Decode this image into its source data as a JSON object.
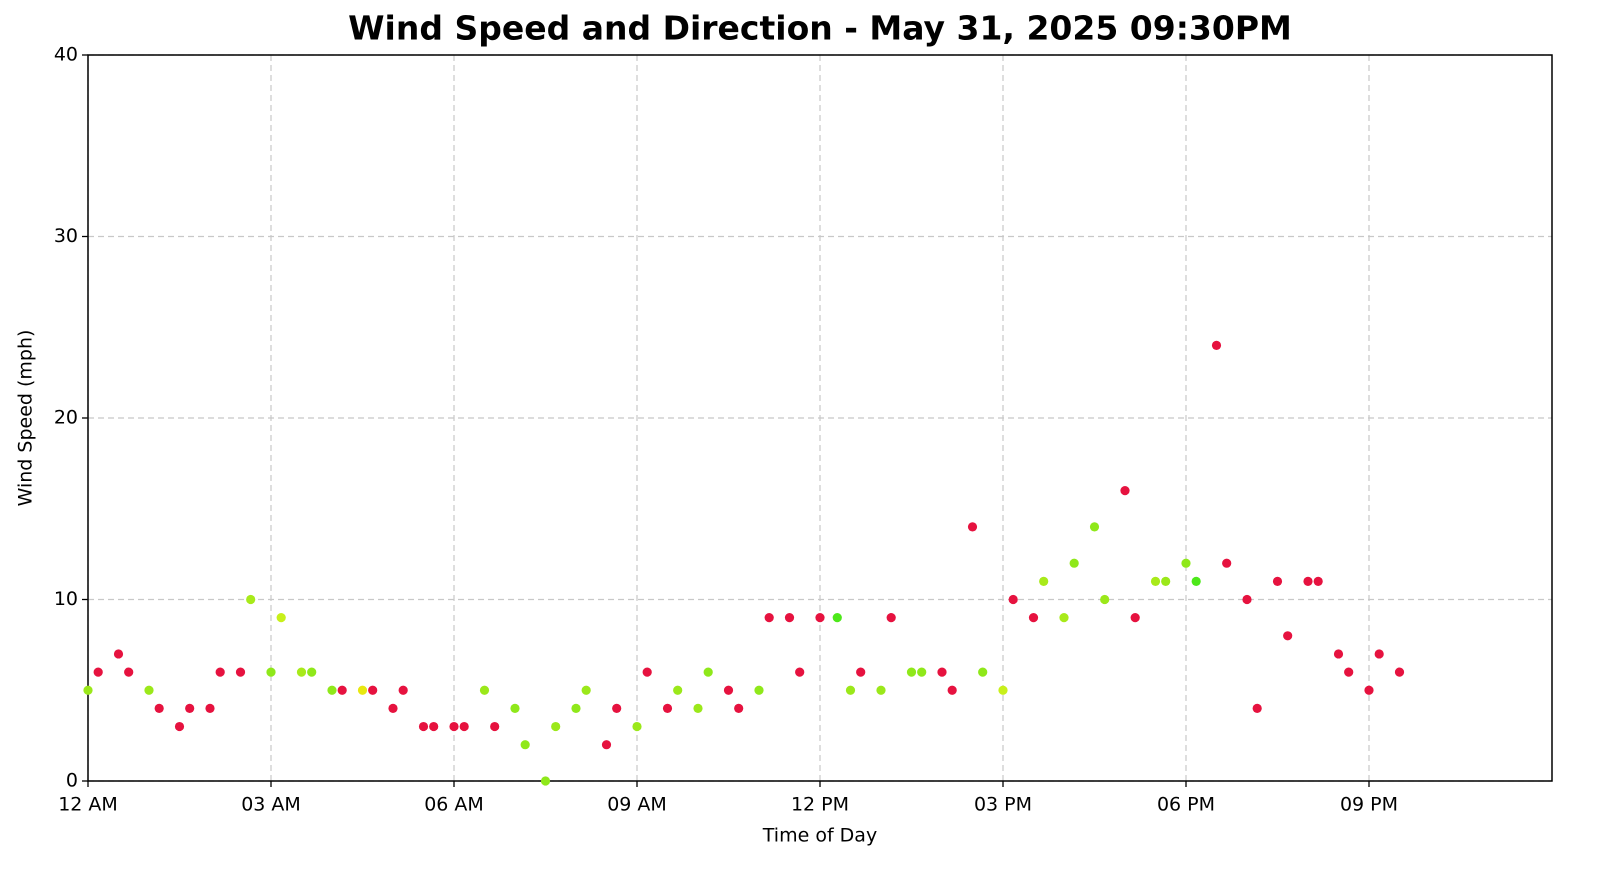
{
  "chart_data": {
    "type": "scatter",
    "title": "Wind Speed and Direction - May 31, 2025 09:30PM",
    "xlabel": "Time of Day",
    "ylabel": "Wind Speed (mph)",
    "xlim": [
      0,
      24
    ],
    "ylim": [
      0,
      40
    ],
    "grid": true,
    "xticks": [
      {
        "value": 0,
        "label": "12 AM"
      },
      {
        "value": 3,
        "label": "03 AM"
      },
      {
        "value": 6,
        "label": "06 AM"
      },
      {
        "value": 9,
        "label": "09 AM"
      },
      {
        "value": 12,
        "label": "12 PM"
      },
      {
        "value": 15,
        "label": "03 PM"
      },
      {
        "value": 18,
        "label": "06 PM"
      },
      {
        "value": 21,
        "label": "09 PM"
      }
    ],
    "yticks": [
      0,
      10,
      20,
      30,
      40
    ],
    "x": [
      0,
      0.167,
      0.5,
      0.667,
      1,
      1.167,
      1.5,
      1.667,
      2,
      2.167,
      2.5,
      2.667,
      3,
      3.167,
      3.5,
      3.667,
      4,
      4.167,
      4.5,
      4.667,
      5,
      5.167,
      5.5,
      5.667,
      6,
      6.167,
      6.5,
      6.667,
      7,
      7.167,
      7.5,
      7.667,
      8,
      8.167,
      8.5,
      8.667,
      9,
      9.167,
      9.5,
      9.667,
      10,
      10.167,
      10.5,
      10.667,
      11,
      11.167,
      11.5,
      11.667,
      12,
      12.283,
      12.5,
      12.667,
      13,
      13.167,
      13.5,
      13.667,
      14,
      14.167,
      14.5,
      14.667,
      15,
      15.167,
      15.5,
      15.667,
      16,
      16.167,
      16.5,
      16.667,
      17,
      17.167,
      17.5,
      17.667,
      18,
      18.167,
      18.5,
      18.667,
      19,
      19.167,
      19.5,
      19.667,
      20,
      20.167,
      20.5,
      20.667,
      21,
      21.167,
      21.5
    ],
    "values": [
      5,
      6,
      7,
      6,
      5,
      4,
      3,
      4,
      4,
      6,
      6,
      10,
      6,
      9,
      6,
      6,
      5,
      5,
      5,
      5,
      4,
      5,
      3,
      3,
      3,
      3,
      5,
      3,
      4,
      2,
      0,
      3,
      4,
      5,
      2,
      4,
      3,
      6,
      4,
      5,
      4,
      6,
      5,
      4,
      5,
      9,
      9,
      6,
      9,
      9,
      5,
      6,
      5,
      9,
      6,
      6,
      6,
      5,
      14,
      6,
      5,
      10,
      9,
      11,
      9,
      12,
      14,
      10,
      16,
      9,
      11,
      11,
      12,
      11,
      24,
      12,
      10,
      4,
      11,
      8,
      11,
      11,
      7,
      6,
      5,
      7,
      6
    ],
    "colors": [
      "#9be81a",
      "#e6123f",
      "#e6123f",
      "#e6123f",
      "#9be81a",
      "#e6123f",
      "#e6123f",
      "#e6123f",
      "#e6123f",
      "#e6123f",
      "#e6123f",
      "#a8ea1a",
      "#8fe81a",
      "#c8f01a",
      "#a8ea1a",
      "#8fe81a",
      "#8fe81a",
      "#e6123f",
      "#e8e810",
      "#e6123f",
      "#e6123f",
      "#e6123f",
      "#e6123f",
      "#e6123f",
      "#e6123f",
      "#e6123f",
      "#9be81a",
      "#e6123f",
      "#8fe81a",
      "#8fe81a",
      "#8fe81a",
      "#9be81a",
      "#8fe81a",
      "#9be81a",
      "#e6123f",
      "#e6123f",
      "#9be81a",
      "#e6123f",
      "#e6123f",
      "#9be81a",
      "#9be81a",
      "#8fe81a",
      "#e6123f",
      "#e6123f",
      "#8fe81a",
      "#e6123f",
      "#e6123f",
      "#e6123f",
      "#e6123f",
      "#4de81a",
      "#9be81a",
      "#e6123f",
      "#9be81a",
      "#e6123f",
      "#8fe81a",
      "#8fe81a",
      "#e6123f",
      "#e6123f",
      "#e6123f",
      "#8fe81a",
      "#c8f01a",
      "#e6123f",
      "#e6123f",
      "#a8ea1a",
      "#a8ea1a",
      "#8fe81a",
      "#8fe81a",
      "#9be81a",
      "#e6123f",
      "#e6123f",
      "#a8ea1a",
      "#9be81a",
      "#8fe81a",
      "#4de81a",
      "#e6123f",
      "#e6123f",
      "#e6123f",
      "#e6123f",
      "#e6123f",
      "#e6123f",
      "#e6123f",
      "#e6123f",
      "#e6123f",
      "#e6123f",
      "#e6123f",
      "#e6123f",
      "#e6123f"
    ]
  }
}
